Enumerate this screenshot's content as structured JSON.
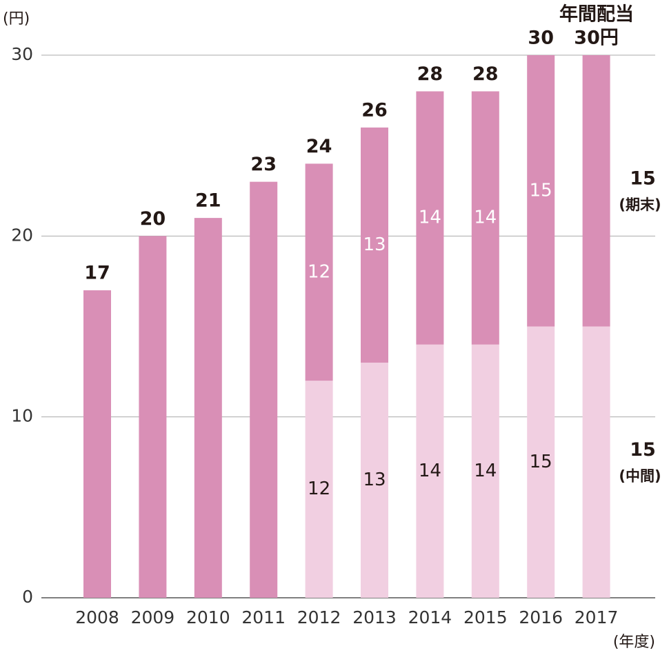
{
  "chart_data": {
    "type": "stacked_bar",
    "y_unit": "(円)",
    "x_unit": "(年度)",
    "annotation": "年間配当",
    "categories": [
      "2008",
      "2009",
      "2010",
      "2011",
      "2012",
      "2013",
      "2014",
      "2015",
      "2016",
      "2017"
    ],
    "series": [
      {
        "name": "(中間)",
        "color": "#f1cfe1",
        "values": [
          null,
          null,
          null,
          null,
          12,
          13,
          14,
          14,
          15,
          15
        ]
      },
      {
        "name": "(期末)",
        "color": "#d98fb6",
        "values": [
          17,
          20,
          21,
          23,
          12,
          13,
          14,
          14,
          15,
          15
        ]
      }
    ],
    "totals": [
      17,
      20,
      21,
      23,
      24,
      26,
      28,
      28,
      30,
      30
    ],
    "total_labels": [
      "17",
      "20",
      "21",
      "23",
      "24",
      "26",
      "28",
      "28",
      "30",
      "30円"
    ],
    "ylim": [
      0,
      30
    ],
    "yticks": [
      0,
      10,
      20,
      30
    ],
    "grid": true
  }
}
